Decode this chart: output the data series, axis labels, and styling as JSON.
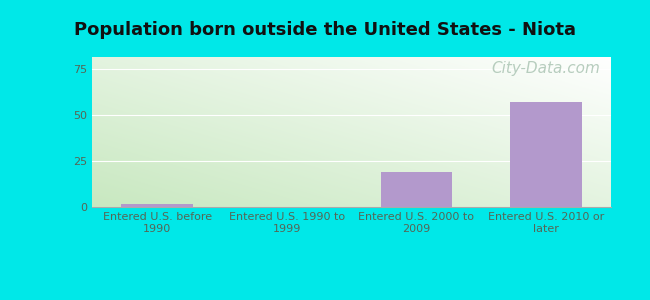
{
  "title": "Population born outside the United States - Niota",
  "categories": [
    "Entered U.S. before\n1990",
    "Entered U.S. 1990 to\n1999",
    "Entered U.S. 2000 to\n2009",
    "Entered U.S. 2010 or\nlater"
  ],
  "values": [
    2,
    0,
    19,
    57
  ],
  "bar_color": "#b399cc",
  "ylim": [
    0,
    82
  ],
  "yticks": [
    0,
    25,
    50,
    75
  ],
  "outer_bg_color": "#00e8e8",
  "plot_bg_green": "#c8e8c0",
  "plot_bg_white": "#ffffff",
  "title_fontsize": 13,
  "tick_fontsize": 8,
  "watermark_text": "City-Data.com",
  "watermark_color": "#b0c8b8",
  "watermark_fontsize": 11,
  "grid_color": "#ddeedc",
  "label_color": "#556655"
}
